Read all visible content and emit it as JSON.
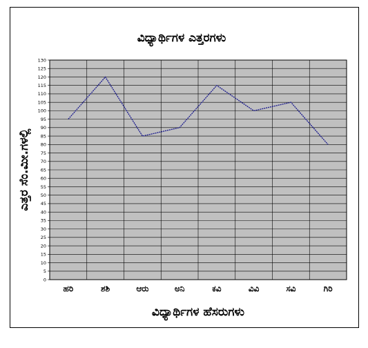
{
  "chart_data": {
    "type": "line",
    "title": "ವಿಧ್ಯಾರ್ಥಿಗಳ ಎತ್ತರಗಳು",
    "xlabel": "ವಿಧ್ಯಾರ್ಥಿಗಳ ಹೆಸರುಗಳು",
    "ylabel": "ಎತ್ತರ ಸೆಂ.ಮೀ.ಗಳಲ್ಲಿ",
    "categories": [
      "ಹರಿ",
      "ಶಶಿ",
      "ಆರು",
      "ಅನಿ",
      "ಕವಿ",
      "ವಿವಿ",
      "ಸವಿ",
      "ಗಿರಿ"
    ],
    "series": [
      {
        "values": [
          95,
          120,
          85,
          90,
          115,
          100,
          105,
          80
        ]
      }
    ],
    "ylim": [
      0,
      130
    ],
    "ytick_step": 5,
    "grid": true,
    "legend": "none",
    "colors": {
      "plot_bg": "#c0c0c0",
      "line": "#1f1f8f",
      "grid": "#000000"
    }
  }
}
